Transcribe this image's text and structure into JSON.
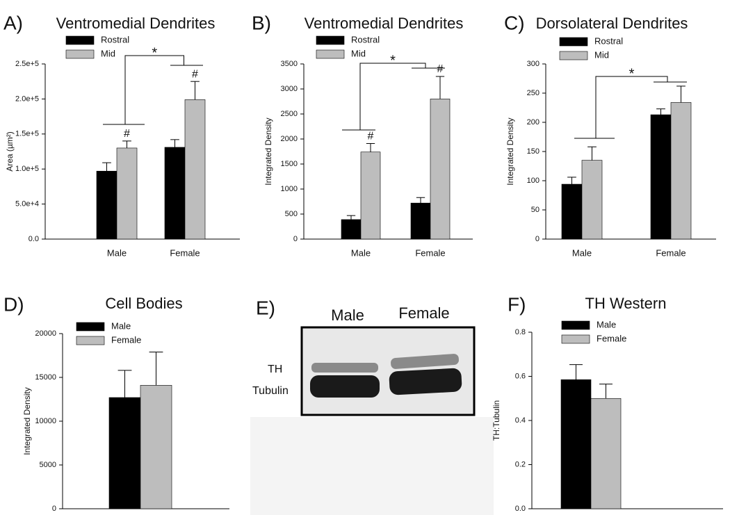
{
  "chart_data": [
    {
      "type": "bar",
      "panel": "A)",
      "title": "Ventromedial Dendrites",
      "y_label": "Area (µm²)",
      "categories": [
        "Male",
        "Female"
      ],
      "series": [
        {
          "name": "Rostral",
          "color": "#000000",
          "values": [
            97000,
            131000
          ],
          "errors": [
            12000,
            11000
          ]
        },
        {
          "name": "Mid",
          "color": "#bdbdbd",
          "values": [
            130000,
            199000
          ],
          "errors": [
            10000,
            26000
          ]
        }
      ],
      "ylim": [
        0,
        250000
      ],
      "yticks": [
        {
          "value": 0,
          "label": "0.0"
        },
        {
          "value": 50000,
          "label": "5.0e+4"
        },
        {
          "value": 100000,
          "label": "1.0e+5"
        },
        {
          "value": 150000,
          "label": "1.5e+5"
        },
        {
          "value": 200000,
          "label": "2.0e+5"
        },
        {
          "value": 250000,
          "label": "2.5e+5"
        }
      ],
      "annotations": [
        "*",
        "#",
        "#"
      ]
    },
    {
      "type": "bar",
      "panel": "B)",
      "title": "Ventromedial Dendrites",
      "y_label": "Integrated Density",
      "categories": [
        "Male",
        "Female"
      ],
      "series": [
        {
          "name": "Rostral",
          "color": "#000000",
          "values": [
            390,
            720
          ],
          "errors": [
            80,
            110
          ]
        },
        {
          "name": "Mid",
          "color": "#bdbdbd",
          "values": [
            1740,
            2800
          ],
          "errors": [
            170,
            450
          ]
        }
      ],
      "ylim": [
        0,
        3500
      ],
      "yticks": [
        0,
        500,
        1000,
        1500,
        2000,
        2500,
        3000,
        3500
      ],
      "annotations": [
        "*",
        "#",
        "#"
      ]
    },
    {
      "type": "bar",
      "panel": "C)",
      "title": "Dorsolateral Dendrites",
      "y_label": "Integrated Density",
      "categories": [
        "Male",
        "Female"
      ],
      "series": [
        {
          "name": "Rostral",
          "color": "#000000",
          "values": [
            94,
            213
          ],
          "errors": [
            12,
            10
          ]
        },
        {
          "name": "Mid",
          "color": "#bdbdbd",
          "values": [
            135,
            234
          ],
          "errors": [
            23,
            28
          ]
        }
      ],
      "ylim": [
        0,
        300
      ],
      "yticks": [
        0,
        50,
        100,
        150,
        200,
        250,
        300
      ],
      "annotations": [
        "*"
      ]
    },
    {
      "type": "bar",
      "panel": "D)",
      "title": "Cell Bodies",
      "y_label": "Integrated Density",
      "categories": [
        null
      ],
      "series": [
        {
          "name": "Male",
          "color": "#000000",
          "values": [
            12700
          ],
          "errors": [
            3100
          ]
        },
        {
          "name": "Female",
          "color": "#bdbdbd",
          "values": [
            14100
          ],
          "errors": [
            3800
          ]
        }
      ],
      "ylim": [
        0,
        20000
      ],
      "yticks": [
        0,
        5000,
        10000,
        15000,
        20000
      ]
    },
    {
      "type": "bar",
      "panel": "F)",
      "title": "TH Western",
      "y_label": "TH:Tubulin",
      "categories": [
        null
      ],
      "series": [
        {
          "name": "Male",
          "color": "#000000",
          "values": [
            0.585
          ],
          "errors": [
            0.068
          ]
        },
        {
          "name": "Female",
          "color": "#bdbdbd",
          "values": [
            0.5
          ],
          "errors": [
            0.065
          ]
        }
      ],
      "ylim": [
        0,
        0.8
      ],
      "yticks": [
        {
          "value": 0,
          "label": "0.0"
        },
        0.2,
        0.4,
        0.6,
        0.8
      ]
    }
  ],
  "blot": {
    "panel": "E)",
    "columns": [
      "Male",
      "Female"
    ],
    "bands": [
      "TH",
      "Tubulin"
    ]
  }
}
